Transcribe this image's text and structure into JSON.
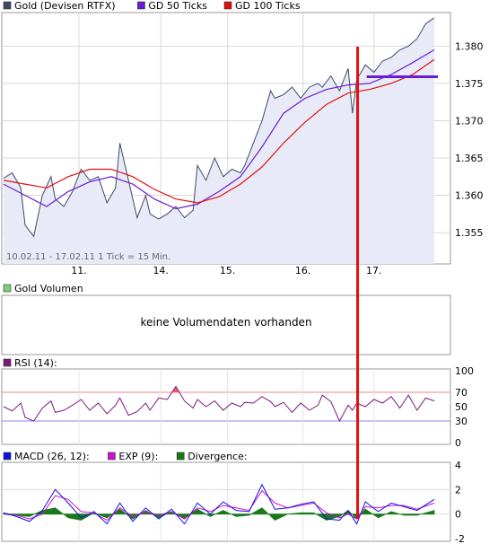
{
  "legend": {
    "main": [
      {
        "label": "Gold (Devisen RTFX)",
        "color": "#3d4a66"
      },
      {
        "label": "GD 50 Ticks",
        "color": "#6a1bd6"
      },
      {
        "label": "GD 100 Ticks",
        "color": "#e01010"
      }
    ],
    "volume": [
      {
        "label": "Gold Volumen",
        "color": "#7ccf7c"
      }
    ],
    "rsi": [
      {
        "label": "RSI (14):",
        "color": "#7a1a7a"
      }
    ],
    "macd": [
      {
        "label": "MACD (26, 12):",
        "color": "#1010e0"
      },
      {
        "label": "EXP (9):",
        "color": "#d010d0"
      },
      {
        "label": "Divergence:",
        "color": "#1a7a1a"
      }
    ]
  },
  "main_panel": {
    "info": "10.02.11 - 17.02.11  1 Tick = 15 Min.",
    "x_ticks": [
      "11.",
      "14.",
      "15.",
      "16.",
      "17."
    ],
    "y_ticks": [
      "1.380",
      "1.375",
      "1.370",
      "1.365",
      "1.360",
      "1.355"
    ]
  },
  "volume_panel": {
    "message": "keine Volumendaten vorhanden"
  },
  "rsi_panel": {
    "y_ticks": [
      "100",
      "70",
      "50",
      "30",
      "0"
    ]
  },
  "macd_panel": {
    "y_ticks": [
      "4",
      "2",
      "0",
      "-2"
    ]
  },
  "chart_data": {
    "type": "line",
    "x_range": [
      0,
      1
    ],
    "x_ticks": [
      "11.",
      "14.",
      "15.",
      "16.",
      "17."
    ],
    "price": {
      "ylim": [
        1.3508,
        1.3845
      ],
      "gold": [
        [
          0.0,
          1.3623
        ],
        [
          0.02,
          1.363
        ],
        [
          0.04,
          1.361
        ],
        [
          0.05,
          1.356
        ],
        [
          0.07,
          1.3545
        ],
        [
          0.09,
          1.36
        ],
        [
          0.11,
          1.3625
        ],
        [
          0.12,
          1.3595
        ],
        [
          0.14,
          1.3585
        ],
        [
          0.16,
          1.3605
        ],
        [
          0.18,
          1.3635
        ],
        [
          0.2,
          1.362
        ],
        [
          0.22,
          1.3625
        ],
        [
          0.24,
          1.359
        ],
        [
          0.26,
          1.361
        ],
        [
          0.27,
          1.367
        ],
        [
          0.29,
          1.362
        ],
        [
          0.31,
          1.357
        ],
        [
          0.33,
          1.36
        ],
        [
          0.34,
          1.3575
        ],
        [
          0.36,
          1.3568
        ],
        [
          0.38,
          1.3575
        ],
        [
          0.4,
          1.3585
        ],
        [
          0.42,
          1.357
        ],
        [
          0.44,
          1.358
        ],
        [
          0.45,
          1.364
        ],
        [
          0.47,
          1.362
        ],
        [
          0.49,
          1.365
        ],
        [
          0.51,
          1.3625
        ],
        [
          0.53,
          1.3635
        ],
        [
          0.55,
          1.363
        ],
        [
          0.56,
          1.364
        ],
        [
          0.58,
          1.367
        ],
        [
          0.6,
          1.37
        ],
        [
          0.62,
          1.374
        ],
        [
          0.63,
          1.373
        ],
        [
          0.65,
          1.3735
        ],
        [
          0.67,
          1.3745
        ],
        [
          0.69,
          1.373
        ],
        [
          0.71,
          1.3745
        ],
        [
          0.73,
          1.375
        ],
        [
          0.74,
          1.3745
        ],
        [
          0.76,
          1.376
        ],
        [
          0.78,
          1.374
        ],
        [
          0.8,
          1.377
        ],
        [
          0.81,
          1.371
        ],
        [
          0.82,
          1.3755
        ],
        [
          0.84,
          1.3775
        ],
        [
          0.86,
          1.3765
        ],
        [
          0.88,
          1.378
        ],
        [
          0.9,
          1.3785
        ],
        [
          0.92,
          1.3795
        ],
        [
          0.94,
          1.38
        ],
        [
          0.96,
          1.381
        ],
        [
          0.98,
          1.383
        ],
        [
          1.0,
          1.3838
        ]
      ],
      "gd50": [
        [
          0.0,
          1.3615
        ],
        [
          0.05,
          1.36
        ],
        [
          0.1,
          1.3585
        ],
        [
          0.15,
          1.3605
        ],
        [
          0.2,
          1.3618
        ],
        [
          0.25,
          1.3625
        ],
        [
          0.3,
          1.3615
        ],
        [
          0.35,
          1.3595
        ],
        [
          0.4,
          1.3582
        ],
        [
          0.45,
          1.3588
        ],
        [
          0.5,
          1.3605
        ],
        [
          0.55,
          1.3625
        ],
        [
          0.6,
          1.3665
        ],
        [
          0.65,
          1.371
        ],
        [
          0.7,
          1.373
        ],
        [
          0.75,
          1.3742
        ],
        [
          0.8,
          1.3748
        ],
        [
          0.85,
          1.375
        ],
        [
          0.9,
          1.3762
        ],
        [
          0.95,
          1.3778
        ],
        [
          1.0,
          1.3795
        ]
      ],
      "gd100": [
        [
          0.0,
          1.362
        ],
        [
          0.05,
          1.3615
        ],
        [
          0.1,
          1.361
        ],
        [
          0.15,
          1.3625
        ],
        [
          0.2,
          1.3635
        ],
        [
          0.25,
          1.3635
        ],
        [
          0.3,
          1.3625
        ],
        [
          0.35,
          1.3608
        ],
        [
          0.4,
          1.3595
        ],
        [
          0.45,
          1.359
        ],
        [
          0.5,
          1.3598
        ],
        [
          0.55,
          1.3615
        ],
        [
          0.6,
          1.3638
        ],
        [
          0.65,
          1.367
        ],
        [
          0.7,
          1.3698
        ],
        [
          0.75,
          1.3722
        ],
        [
          0.8,
          1.3737
        ],
        [
          0.85,
          1.3742
        ],
        [
          0.9,
          1.375
        ],
        [
          0.95,
          1.3762
        ],
        [
          1.0,
          1.3782
        ]
      ],
      "annotations": [
        {
          "type": "horizontal_segment",
          "x": [
            0.843,
            1.0
          ],
          "y": 1.3759,
          "color": "#6a1bd6"
        },
        {
          "type": "vertical_line",
          "x": 0.822,
          "color": "#e01010"
        }
      ]
    },
    "volume": {
      "values": []
    },
    "rsi": {
      "ylim": [
        0,
        100
      ],
      "levels": [
        70,
        30
      ],
      "values": [
        [
          0.0,
          50
        ],
        [
          0.02,
          44
        ],
        [
          0.04,
          55
        ],
        [
          0.05,
          35
        ],
        [
          0.07,
          30
        ],
        [
          0.09,
          48
        ],
        [
          0.11,
          58
        ],
        [
          0.12,
          42
        ],
        [
          0.14,
          45
        ],
        [
          0.16,
          52
        ],
        [
          0.18,
          60
        ],
        [
          0.2,
          45
        ],
        [
          0.22,
          55
        ],
        [
          0.24,
          40
        ],
        [
          0.26,
          52
        ],
        [
          0.27,
          62
        ],
        [
          0.29,
          38
        ],
        [
          0.31,
          43
        ],
        [
          0.33,
          55
        ],
        [
          0.34,
          45
        ],
        [
          0.36,
          62
        ],
        [
          0.38,
          60
        ],
        [
          0.4,
          78
        ],
        [
          0.42,
          58
        ],
        [
          0.44,
          48
        ],
        [
          0.45,
          60
        ],
        [
          0.47,
          50
        ],
        [
          0.49,
          58
        ],
        [
          0.51,
          45
        ],
        [
          0.53,
          55
        ],
        [
          0.55,
          50
        ],
        [
          0.56,
          56
        ],
        [
          0.58,
          55
        ],
        [
          0.6,
          64
        ],
        [
          0.62,
          57
        ],
        [
          0.63,
          50
        ],
        [
          0.65,
          56
        ],
        [
          0.67,
          42
        ],
        [
          0.69,
          55
        ],
        [
          0.71,
          45
        ],
        [
          0.73,
          52
        ],
        [
          0.74,
          66
        ],
        [
          0.76,
          57
        ],
        [
          0.78,
          30
        ],
        [
          0.8,
          52
        ],
        [
          0.81,
          45
        ],
        [
          0.82,
          55
        ],
        [
          0.84,
          50
        ],
        [
          0.86,
          60
        ],
        [
          0.88,
          55
        ],
        [
          0.9,
          64
        ],
        [
          0.92,
          48
        ],
        [
          0.94,
          66
        ],
        [
          0.96,
          45
        ],
        [
          0.98,
          62
        ],
        [
          1.0,
          58
        ]
      ]
    },
    "macd": {
      "ylim": [
        -2,
        4
      ],
      "macd": [
        [
          0.0,
          0.1
        ],
        [
          0.03,
          -0.2
        ],
        [
          0.06,
          -0.6
        ],
        [
          0.09,
          0.3
        ],
        [
          0.12,
          2.0
        ],
        [
          0.15,
          0.9
        ],
        [
          0.18,
          -0.3
        ],
        [
          0.21,
          0.2
        ],
        [
          0.24,
          -0.8
        ],
        [
          0.27,
          0.9
        ],
        [
          0.3,
          -0.6
        ],
        [
          0.33,
          0.5
        ],
        [
          0.36,
          -0.4
        ],
        [
          0.39,
          0.4
        ],
        [
          0.42,
          -0.8
        ],
        [
          0.45,
          0.9
        ],
        [
          0.48,
          0.0
        ],
        [
          0.51,
          1.0
        ],
        [
          0.54,
          0.3
        ],
        [
          0.57,
          0.2
        ],
        [
          0.6,
          2.4
        ],
        [
          0.63,
          0.4
        ],
        [
          0.66,
          0.5
        ],
        [
          0.69,
          0.8
        ],
        [
          0.72,
          1.0
        ],
        [
          0.75,
          -0.4
        ],
        [
          0.78,
          -0.5
        ],
        [
          0.8,
          0.3
        ],
        [
          0.82,
          -0.8
        ],
        [
          0.84,
          1.0
        ],
        [
          0.87,
          0.2
        ],
        [
          0.9,
          0.9
        ],
        [
          0.93,
          0.6
        ],
        [
          0.96,
          0.3
        ],
        [
          1.0,
          1.2
        ]
      ],
      "exp": [
        [
          0.0,
          0.0
        ],
        [
          0.03,
          -0.1
        ],
        [
          0.06,
          -0.4
        ],
        [
          0.09,
          0.0
        ],
        [
          0.12,
          1.5
        ],
        [
          0.15,
          1.2
        ],
        [
          0.18,
          0.2
        ],
        [
          0.21,
          0.1
        ],
        [
          0.24,
          -0.5
        ],
        [
          0.27,
          0.5
        ],
        [
          0.3,
          -0.2
        ],
        [
          0.33,
          0.2
        ],
        [
          0.36,
          -0.1
        ],
        [
          0.39,
          0.2
        ],
        [
          0.42,
          -0.4
        ],
        [
          0.45,
          0.5
        ],
        [
          0.48,
          0.2
        ],
        [
          0.51,
          0.7
        ],
        [
          0.54,
          0.5
        ],
        [
          0.57,
          0.3
        ],
        [
          0.6,
          1.9
        ],
        [
          0.63,
          0.9
        ],
        [
          0.66,
          0.5
        ],
        [
          0.69,
          0.7
        ],
        [
          0.72,
          0.9
        ],
        [
          0.75,
          0.1
        ],
        [
          0.78,
          -0.3
        ],
        [
          0.8,
          0.0
        ],
        [
          0.82,
          -0.4
        ],
        [
          0.84,
          0.6
        ],
        [
          0.87,
          0.5
        ],
        [
          0.9,
          0.7
        ],
        [
          0.93,
          0.7
        ],
        [
          0.96,
          0.4
        ],
        [
          1.0,
          0.9
        ]
      ],
      "divergence": [
        [
          0.0,
          0.1
        ],
        [
          0.03,
          -0.1
        ],
        [
          0.06,
          -0.2
        ],
        [
          0.09,
          0.3
        ],
        [
          0.12,
          0.5
        ],
        [
          0.15,
          -0.3
        ],
        [
          0.18,
          -0.5
        ],
        [
          0.21,
          0.1
        ],
        [
          0.24,
          -0.3
        ],
        [
          0.27,
          0.4
        ],
        [
          0.3,
          -0.4
        ],
        [
          0.33,
          0.3
        ],
        [
          0.36,
          -0.3
        ],
        [
          0.39,
          0.2
        ],
        [
          0.42,
          -0.4
        ],
        [
          0.45,
          0.4
        ],
        [
          0.48,
          -0.2
        ],
        [
          0.51,
          0.3
        ],
        [
          0.54,
          -0.2
        ],
        [
          0.57,
          -0.1
        ],
        [
          0.6,
          0.5
        ],
        [
          0.63,
          -0.5
        ],
        [
          0.66,
          0.0
        ],
        [
          0.69,
          0.1
        ],
        [
          0.72,
          0.1
        ],
        [
          0.75,
          -0.5
        ],
        [
          0.78,
          -0.2
        ],
        [
          0.8,
          0.3
        ],
        [
          0.82,
          -0.4
        ],
        [
          0.84,
          0.4
        ],
        [
          0.87,
          -0.3
        ],
        [
          0.9,
          0.2
        ],
        [
          0.93,
          -0.1
        ],
        [
          0.96,
          -0.1
        ],
        [
          1.0,
          0.3
        ]
      ]
    }
  }
}
